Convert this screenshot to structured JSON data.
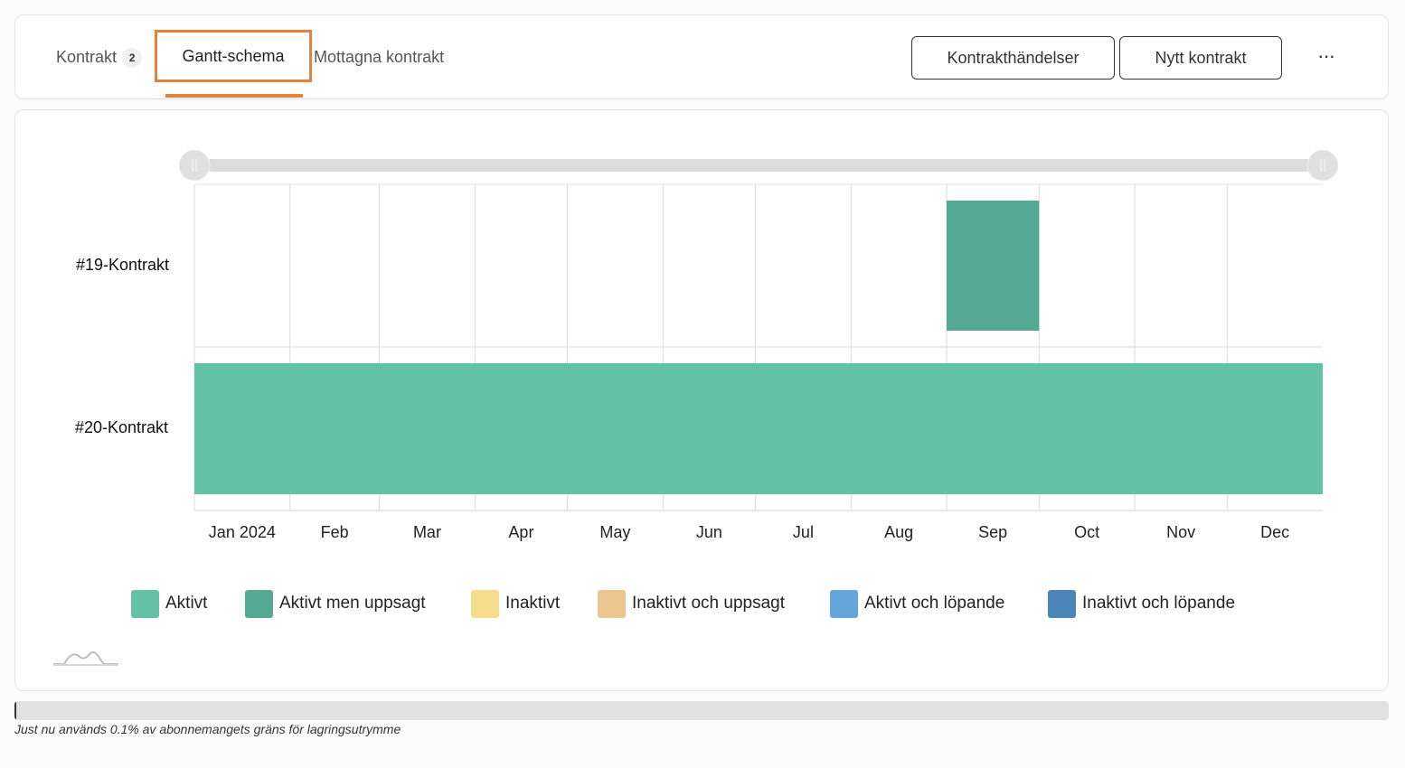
{
  "tabs": {
    "kontrakt_label": "Kontrakt",
    "kontrakt_count": "2",
    "gantt_label": "Gantt-schema",
    "mottagna_label": "Mottagna kontrakt"
  },
  "buttons": {
    "events": "Kontrakthändelser",
    "new_contract": "Nytt kontrakt",
    "more": "···"
  },
  "colors": {
    "accent": "#e8803a",
    "aktivt": "#63c1a5",
    "aktivt_men_uppsagt": "#55a892",
    "inaktivt": "#f6dd8e",
    "inaktivt_och_uppsagt": "#ecc68f",
    "aktivt_och_lopande": "#65a6dc",
    "inaktivt_och_lopande": "#4c86b8"
  },
  "chart_data": {
    "type": "gantt",
    "x_axis": {
      "start": "2024-01-01",
      "end": "2024-12-31",
      "tick_labels": [
        "Jan 2024",
        "Feb",
        "Mar",
        "Apr",
        "May",
        "Jun",
        "Jul",
        "Aug",
        "Sep",
        "Oct",
        "Nov",
        "Dec"
      ]
    },
    "rows": [
      {
        "label": "#19-Kontrakt",
        "bars": [
          {
            "start": "2024-09-01",
            "end": "2024-09-30",
            "status": "Aktivt men uppsagt"
          }
        ]
      },
      {
        "label": "#20-Kontrakt",
        "bars": [
          {
            "start": "2024-01-01",
            "end": "2024-12-31",
            "status": "Aktivt"
          }
        ]
      }
    ],
    "legend": [
      {
        "label": "Aktivt",
        "color": "#63c1a5"
      },
      {
        "label": "Aktivt men uppsagt",
        "color": "#55a892"
      },
      {
        "label": "Inaktivt",
        "color": "#f6dd8e"
      },
      {
        "label": "Inaktivt och uppsagt",
        "color": "#ecc68f"
      },
      {
        "label": "Aktivt och löpande",
        "color": "#65a6dc"
      },
      {
        "label": "Inaktivt och löpande",
        "color": "#4c86b8"
      }
    ],
    "legend_position": "bottom",
    "grid": true,
    "range_slider": {
      "from": 0,
      "to": 1
    }
  },
  "storage": {
    "percent": 0.1,
    "text": "Just nu används 0.1% av abonnemangets gräns för lagringsutrymme"
  }
}
